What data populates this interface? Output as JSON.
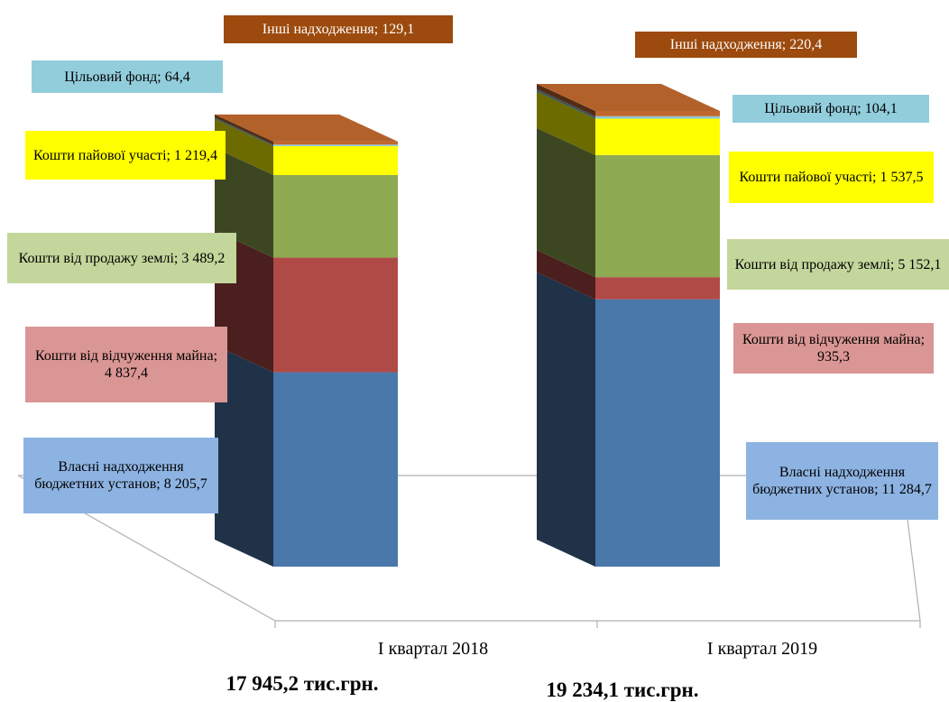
{
  "chart_data": {
    "type": "bar3d_stacked",
    "categories": [
      "І квартал 2018",
      "І квартал 2019"
    ],
    "series": [
      {
        "color": "#4a78ab",
        "values": [
          8205.7,
          11284.7
        ],
        "value_labels": [
          "Власні надходження бюджетних установ; 8 205,7",
          "Власні надходження бюджетних установ; 11 284,7"
        ],
        "label_color": "#8db3e2"
      },
      {
        "color": "#b04a46",
        "values": [
          4837.4,
          935.3
        ],
        "value_labels": [
          "Кошти від відчуження майна; 4 837,4",
          "Кошти від відчуження майна; 935,3"
        ],
        "label_color": "#da9694"
      },
      {
        "color": "#8eaa52",
        "values": [
          3489.2,
          5152.1
        ],
        "value_labels": [
          "Кошти від продажу землі; 3 489,2",
          "Кошти від продажу землі; 5 152,1"
        ],
        "label_color": "#c3d69b"
      },
      {
        "color": "#ffff00",
        "values": [
          1219.4,
          1537.5
        ],
        "value_labels": [
          "Кошти пайової участі; 1 219,4",
          "Кошти пайової участі; 1 537,5"
        ],
        "label_color": "#ffff00"
      },
      {
        "color": "#8fc6d8",
        "values": [
          64.4,
          104.1
        ],
        "value_labels": [
          "Цільовий фонд; 64,4",
          "Цільовий фонд; 104,1"
        ],
        "label_color": "#92cddc"
      },
      {
        "color": "#c0682e",
        "values": [
          129.1,
          220.4
        ],
        "value_labels": [
          "Інші надходження; 129,1",
          "Інші надходження; 220,4"
        ],
        "label_color": "#9c4a0d"
      }
    ],
    "totals": [
      17945.2,
      19234.1
    ],
    "total_labels": [
      "17 945,2 тис.грн.",
      "19 234,1 тис.грн."
    ]
  }
}
